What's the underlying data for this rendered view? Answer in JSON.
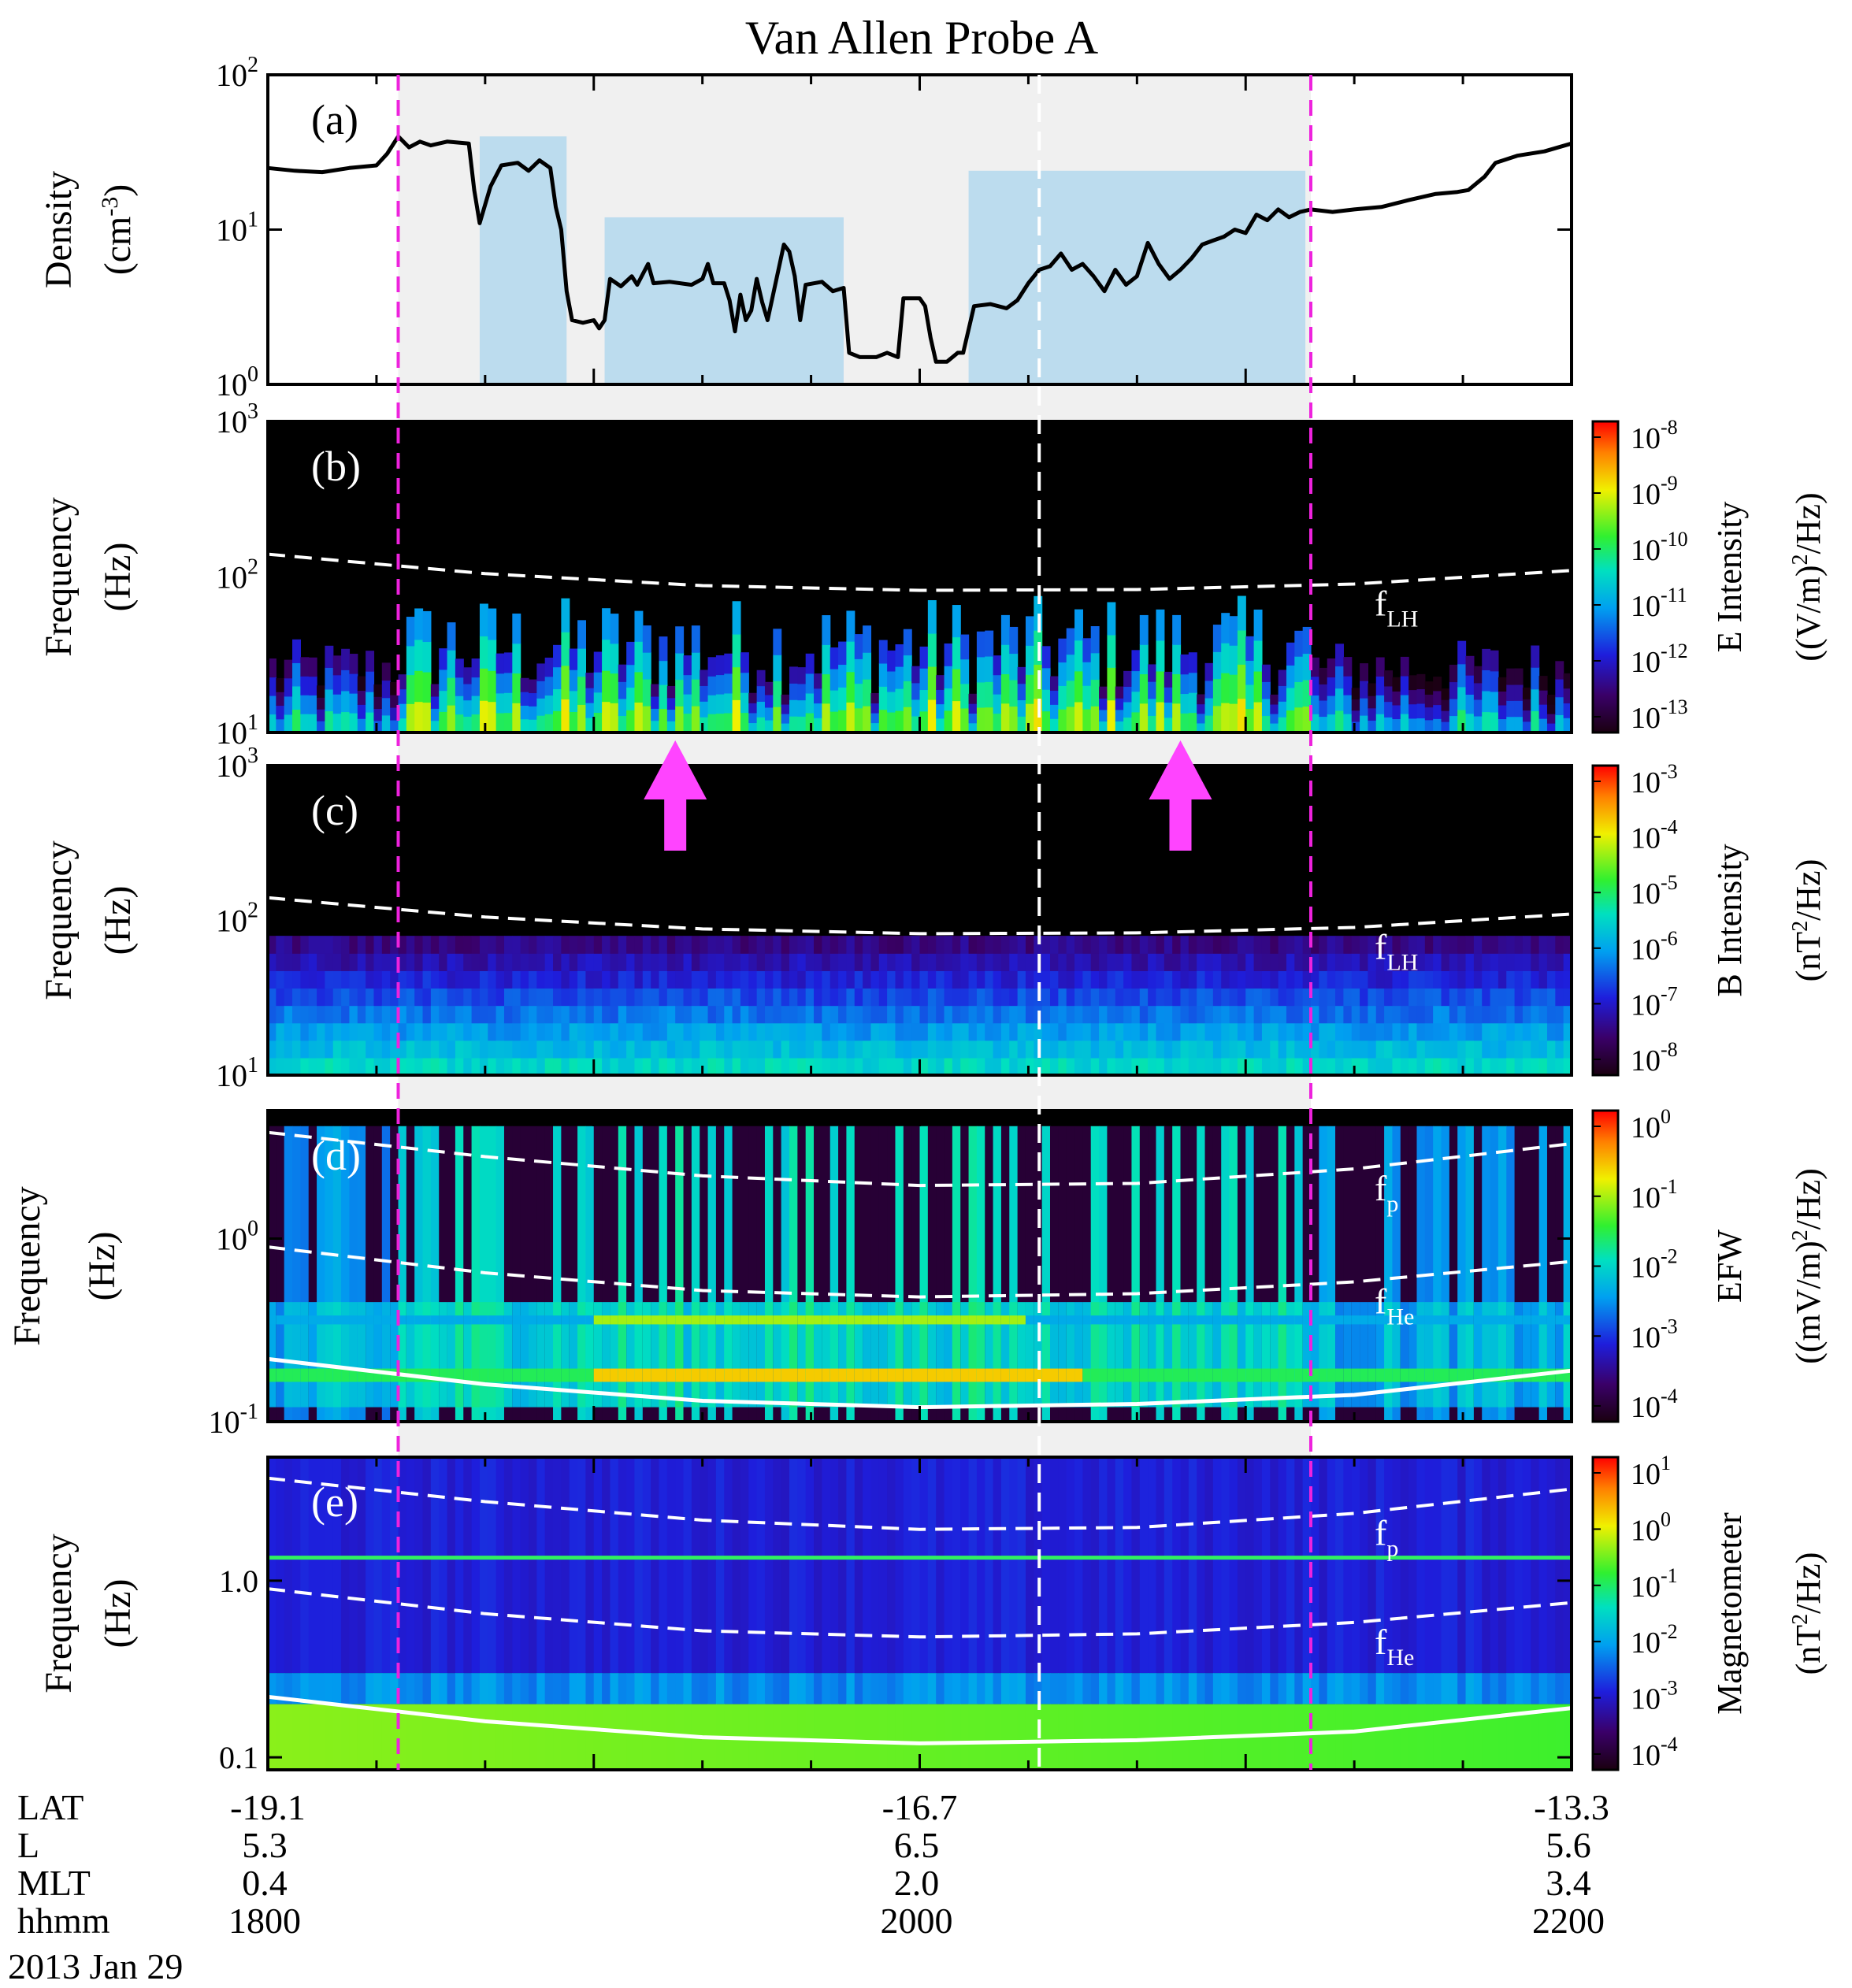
{
  "chart_data": {
    "type": "multi-panel spectrogram",
    "title": "Van Allen Probe A",
    "date": "2013 Jan 29",
    "x_axis": {
      "rows": [
        {
          "name": "LAT",
          "values": [
            "-19.1",
            "-16.7",
            "-13.3"
          ]
        },
        {
          "name": "L",
          "values": [
            "5.3",
            "6.5",
            "5.6"
          ]
        },
        {
          "name": "MLT",
          "values": [
            "0.4",
            "2.0",
            "3.4"
          ]
        },
        {
          "name": "hhmm",
          "values": [
            "1800",
            "2000",
            "2200"
          ]
        }
      ],
      "range_minutes": [
        0,
        240
      ]
    },
    "markers": {
      "magenta_dashed_minutes": [
        24,
        192
      ],
      "white_dashed_minute": 142,
      "shaded_interval_minutes": [
        24,
        192
      ],
      "density_boxes": [
        {
          "x": [
            39,
            55
          ],
          "y": [
            1,
            40
          ]
        },
        {
          "x": [
            62,
            106
          ],
          "y": [
            1,
            12
          ]
        },
        {
          "x": [
            129,
            191
          ],
          "y": [
            1,
            24
          ]
        }
      ],
      "arrows_minutes": [
        75,
        168
      ]
    },
    "panels": [
      {
        "label": "(a)",
        "ylabel_line1": "Density",
        "ylabel_unit": "(cm",
        "ylabel_unit_sup": "-3",
        "ylabel_unit_end": ")",
        "yscale": "log",
        "ylim": [
          1,
          100
        ],
        "yticks": [
          {
            "b": "10",
            "e": "0"
          },
          {
            "b": "10",
            "e": "1"
          },
          {
            "b": "10",
            "e": "2"
          }
        ],
        "series": {
          "name": "density",
          "points": [
            [
              0,
              25
            ],
            [
              5,
              24
            ],
            [
              10,
              23.5
            ],
            [
              15,
              25
            ],
            [
              20,
              26
            ],
            [
              22,
              31
            ],
            [
              24,
              40
            ],
            [
              26,
              34
            ],
            [
              28,
              37
            ],
            [
              30,
              35
            ],
            [
              33,
              37
            ],
            [
              37,
              36
            ],
            [
              38,
              18
            ],
            [
              39,
              11
            ],
            [
              41,
              19
            ],
            [
              43,
              26
            ],
            [
              46,
              27
            ],
            [
              48,
              24
            ],
            [
              50,
              28
            ],
            [
              52,
              25
            ],
            [
              53,
              14
            ],
            [
              54,
              10
            ],
            [
              55,
              4
            ],
            [
              56,
              2.6
            ],
            [
              58,
              2.5
            ],
            [
              60,
              2.6
            ],
            [
              61,
              2.3
            ],
            [
              62,
              2.6
            ],
            [
              63,
              4.8
            ],
            [
              65,
              4.3
            ],
            [
              67,
              5.0
            ],
            [
              68,
              4.4
            ],
            [
              70,
              6.0
            ],
            [
              71,
              4.5
            ],
            [
              74,
              4.6
            ],
            [
              78,
              4.4
            ],
            [
              80,
              4.8
            ],
            [
              81,
              6.0
            ],
            [
              82,
              4.5
            ],
            [
              84,
              4.5
            ],
            [
              85,
              3.5
            ],
            [
              86,
              2.2
            ],
            [
              87,
              3.8
            ],
            [
              88,
              2.6
            ],
            [
              89,
              3.0
            ],
            [
              90,
              4.8
            ],
            [
              91,
              3.4
            ],
            [
              92,
              2.6
            ],
            [
              95,
              8.0
            ],
            [
              96,
              7.2
            ],
            [
              97,
              5.0
            ],
            [
              98,
              2.6
            ],
            [
              99,
              4.4
            ],
            [
              102,
              4.6
            ],
            [
              104,
              4.0
            ],
            [
              106,
              4.2
            ],
            [
              107,
              1.6
            ],
            [
              109,
              1.5
            ],
            [
              112,
              1.5
            ],
            [
              114,
              1.6
            ],
            [
              116,
              1.5
            ],
            [
              117,
              3.6
            ],
            [
              120,
              3.6
            ],
            [
              121,
              3.2
            ],
            [
              122,
              2.0
            ],
            [
              123,
              1.4
            ],
            [
              125,
              1.4
            ],
            [
              127,
              1.6
            ],
            [
              128,
              1.6
            ],
            [
              130,
              3.2
            ],
            [
              133,
              3.3
            ],
            [
              136,
              3.1
            ],
            [
              138,
              3.5
            ],
            [
              140,
              4.5
            ],
            [
              142,
              5.5
            ],
            [
              144,
              5.8
            ],
            [
              146,
              7.0
            ],
            [
              148,
              5.5
            ],
            [
              150,
              6.0
            ],
            [
              152,
              5.0
            ],
            [
              154,
              4.0
            ],
            [
              156,
              5.5
            ],
            [
              158,
              4.4
            ],
            [
              160,
              5.0
            ],
            [
              162,
              8.2
            ],
            [
              164,
              6.0
            ],
            [
              166,
              4.8
            ],
            [
              168,
              5.5
            ],
            [
              170,
              6.5
            ],
            [
              172,
              8.0
            ],
            [
              174,
              8.5
            ],
            [
              176,
              9.0
            ],
            [
              178,
              10.0
            ],
            [
              180,
              9.5
            ],
            [
              182,
              12.5
            ],
            [
              184,
              11.5
            ],
            [
              186,
              13.5
            ],
            [
              188,
              12.0
            ],
            [
              190,
              13.0
            ],
            [
              192,
              13.5
            ],
            [
              196,
              13.0
            ],
            [
              200,
              13.5
            ],
            [
              205,
              14.0
            ],
            [
              210,
              15.5
            ],
            [
              215,
              17.0
            ],
            [
              219,
              17.5
            ],
            [
              221,
              18.0
            ],
            [
              224,
              22.0
            ],
            [
              226,
              27.0
            ],
            [
              230,
              30.0
            ],
            [
              235,
              32.0
            ],
            [
              240,
              36.0
            ]
          ]
        }
      },
      {
        "label": "(b)",
        "ylabel_line1": "Frequency",
        "ylabel_unit": "(Hz)",
        "yscale": "log",
        "ylim": [
          10,
          1000
        ],
        "yticks": [
          {
            "b": "10",
            "e": "1"
          },
          {
            "b": "10",
            "e": "2"
          },
          {
            "b": "10",
            "e": "3"
          }
        ],
        "curves": [
          {
            "name": "f",
            "sub": "LH",
            "points": [
              [
                0,
                140
              ],
              [
                40,
                105
              ],
              [
                80,
                88
              ],
              [
                120,
                82
              ],
              [
                160,
                83
              ],
              [
                200,
                90
              ],
              [
                240,
                110
              ]
            ]
          }
        ],
        "colorbar": {
          "label": "E Intensity",
          "unit": "((V/m)",
          "unit_sup": "2",
          "unit_end": "/Hz)",
          "ticks": [
            {
              "b": "10",
              "e": "-8"
            },
            {
              "b": "10",
              "e": "-9"
            },
            {
              "b": "10",
              "e": "-10"
            },
            {
              "b": "10",
              "e": "-11"
            },
            {
              "b": "10",
              "e": "-12"
            },
            {
              "b": "10",
              "e": "-13"
            }
          ]
        }
      },
      {
        "label": "(c)",
        "ylabel_line1": "Frequency",
        "ylabel_unit": "(Hz)",
        "yscale": "log",
        "ylim": [
          10,
          1000
        ],
        "yticks": [
          {
            "b": "10",
            "e": "1"
          },
          {
            "b": "10",
            "e": "2"
          },
          {
            "b": "10",
            "e": "3"
          }
        ],
        "curves": [
          {
            "name": "f",
            "sub": "LH",
            "points": [
              [
                0,
                140
              ],
              [
                40,
                105
              ],
              [
                80,
                88
              ],
              [
                120,
                82
              ],
              [
                160,
                83
              ],
              [
                200,
                90
              ],
              [
                240,
                110
              ]
            ]
          }
        ],
        "colorbar": {
          "label": "B Intensity",
          "unit": "(nT",
          "unit_sup": "2",
          "unit_end": "/Hz)",
          "ticks": [
            {
              "b": "10",
              "e": "-3"
            },
            {
              "b": "10",
              "e": "-4"
            },
            {
              "b": "10",
              "e": "-5"
            },
            {
              "b": "10",
              "e": "-6"
            },
            {
              "b": "10",
              "e": "-7"
            },
            {
              "b": "10",
              "e": "-8"
            }
          ]
        }
      },
      {
        "label": "(d)",
        "ylabel_line1": "Frequency",
        "ylabel_unit": "(Hz)",
        "yscale": "log",
        "ylim": [
          0.1,
          5
        ],
        "yticks": [
          {
            "b": "10",
            "e": "-1"
          },
          {
            "b": "10",
            "e": "0"
          }
        ],
        "curves": [
          {
            "name": "f",
            "sub": "p",
            "points": [
              [
                0,
                3.8
              ],
              [
                40,
                2.8
              ],
              [
                80,
                2.2
              ],
              [
                120,
                1.95
              ],
              [
                160,
                2.0
              ],
              [
                200,
                2.4
              ],
              [
                240,
                3.3
              ]
            ]
          },
          {
            "name": "f",
            "sub": "He",
            "points": [
              [
                0,
                0.9
              ],
              [
                40,
                0.65
              ],
              [
                80,
                0.52
              ],
              [
                120,
                0.48
              ],
              [
                160,
                0.5
              ],
              [
                200,
                0.58
              ],
              [
                240,
                0.75
              ]
            ]
          },
          {
            "name": "",
            "sub": "",
            "points": [
              [
                0,
                0.22
              ],
              [
                40,
                0.16
              ],
              [
                80,
                0.13
              ],
              [
                120,
                0.12
              ],
              [
                160,
                0.125
              ],
              [
                200,
                0.14
              ],
              [
                240,
                0.19
              ]
            ]
          }
        ],
        "colorbar": {
          "label": "EFW",
          "unit": "((mV/m)",
          "unit_sup": "2",
          "unit_end": "/Hz)",
          "ticks": [
            {
              "b": "10",
              "e": "0"
            },
            {
              "b": "10",
              "e": "-1"
            },
            {
              "b": "10",
              "e": "-2"
            },
            {
              "b": "10",
              "e": "-3"
            },
            {
              "b": "10",
              "e": "-4"
            }
          ]
        }
      },
      {
        "label": "(e)",
        "ylabel_line1": "Frequency",
        "ylabel_unit": "(Hz)",
        "yscale": "log",
        "ylim": [
          0.085,
          5
        ],
        "yticks": [
          {
            "b": "0.1",
            "e": ""
          },
          {
            "b": "1.0",
            "e": ""
          }
        ],
        "curves": [
          {
            "name": "f",
            "sub": "p",
            "points": [
              [
                0,
                3.8
              ],
              [
                40,
                2.8
              ],
              [
                80,
                2.2
              ],
              [
                120,
                1.95
              ],
              [
                160,
                2.0
              ],
              [
                200,
                2.4
              ],
              [
                240,
                3.3
              ]
            ]
          },
          {
            "name": "f",
            "sub": "He",
            "points": [
              [
                0,
                0.9
              ],
              [
                40,
                0.65
              ],
              [
                80,
                0.52
              ],
              [
                120,
                0.48
              ],
              [
                160,
                0.5
              ],
              [
                200,
                0.58
              ],
              [
                240,
                0.75
              ]
            ]
          },
          {
            "name": "",
            "sub": "",
            "points": [
              [
                0,
                0.22
              ],
              [
                40,
                0.16
              ],
              [
                80,
                0.13
              ],
              [
                120,
                0.12
              ],
              [
                160,
                0.125
              ],
              [
                200,
                0.14
              ],
              [
                240,
                0.19
              ]
            ]
          }
        ],
        "colorbar": {
          "label": "Magnetometer",
          "unit": "(nT",
          "unit_sup": "2",
          "unit_end": "/Hz)",
          "ticks": [
            {
              "b": "10",
              "e": "1"
            },
            {
              "b": "10",
              "e": "0"
            },
            {
              "b": "10",
              "e": "-1"
            },
            {
              "b": "10",
              "e": "-2"
            },
            {
              "b": "10",
              "e": "-3"
            },
            {
              "b": "10",
              "e": "-4"
            }
          ]
        }
      }
    ]
  }
}
